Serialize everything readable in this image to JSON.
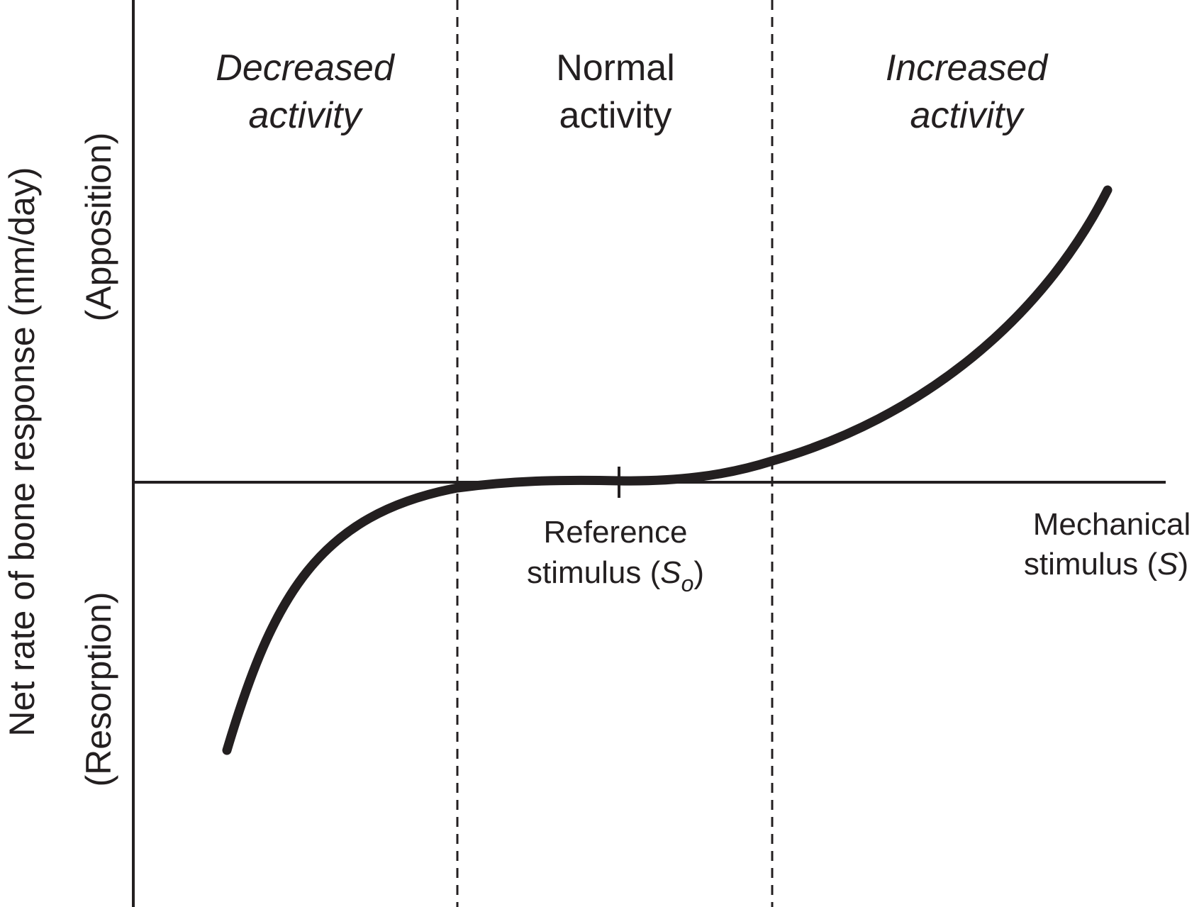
{
  "chart_data": {
    "type": "line",
    "title": "",
    "xlabel_line1": "Mechanical",
    "xlabel_line2_prefix": "stimulus (",
    "xlabel_symbol": "S",
    "xlabel_line2_suffix": ")",
    "ylabel": "Net rate of bone response (mm/day)",
    "y_positive_label": "(Apposition)",
    "y_negative_label": "(Resorption)",
    "reference_line1": "Reference",
    "reference_line2_prefix": "stimulus (",
    "reference_symbol": "S",
    "reference_subscript": "o",
    "reference_line2_suffix": ")",
    "regions": [
      {
        "line1": "Decreased",
        "line2": "activity",
        "italic": true
      },
      {
        "line1": "Normal",
        "line2": "activity",
        "italic": false
      },
      {
        "line1": "Increased",
        "line2": "activity",
        "italic": true
      }
    ],
    "xlim": [
      -1.0,
      1.0
    ],
    "ylim": [
      -1.0,
      1.0
    ],
    "reference_x": 0.0,
    "region_boundaries": [
      -0.315,
      0.295
    ],
    "series": [
      {
        "name": "bone response",
        "x": [
          -0.82,
          -0.75,
          -0.7,
          -0.6,
          -0.5,
          -0.4,
          -0.315,
          -0.2,
          -0.1,
          0.0,
          0.1,
          0.2,
          0.295,
          0.4,
          0.5,
          0.6,
          0.7,
          0.8,
          0.85,
          0.95
        ],
        "y": [
          -0.66,
          -0.48,
          -0.38,
          -0.24,
          -0.13,
          -0.06,
          -0.02,
          -0.006,
          -0.001,
          0.0,
          0.001,
          0.01,
          0.05,
          0.12,
          0.22,
          0.33,
          0.45,
          0.56,
          0.62,
          0.73
        ]
      }
    ],
    "grid": false,
    "legend": "none"
  }
}
